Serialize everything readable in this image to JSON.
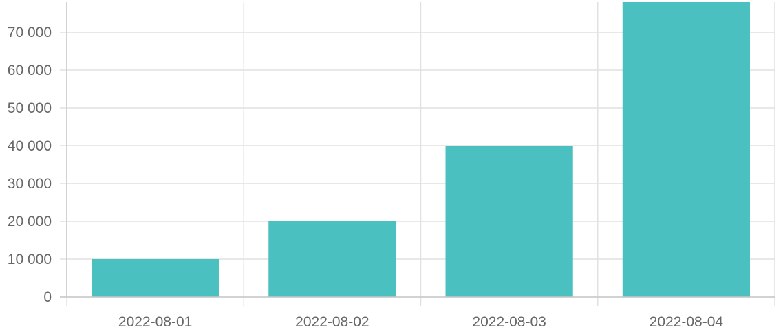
{
  "chart_data": {
    "type": "bar",
    "categories": [
      "2022-08-01",
      "2022-08-02",
      "2022-08-03",
      "2022-08-04"
    ],
    "values": [
      10000,
      20000,
      40000,
      78000
    ],
    "y_ticks": [
      0,
      10000,
      20000,
      30000,
      40000,
      50000,
      60000,
      70000
    ],
    "y_tick_labels": [
      "0",
      "10 000",
      "20 000",
      "30 000",
      "40 000",
      "50 000",
      "60 000",
      "70 000"
    ],
    "ylim": [
      0,
      78000
    ],
    "grid": true,
    "bar_color": "#4bc0c0",
    "title": "",
    "xlabel": "",
    "ylabel": ""
  }
}
